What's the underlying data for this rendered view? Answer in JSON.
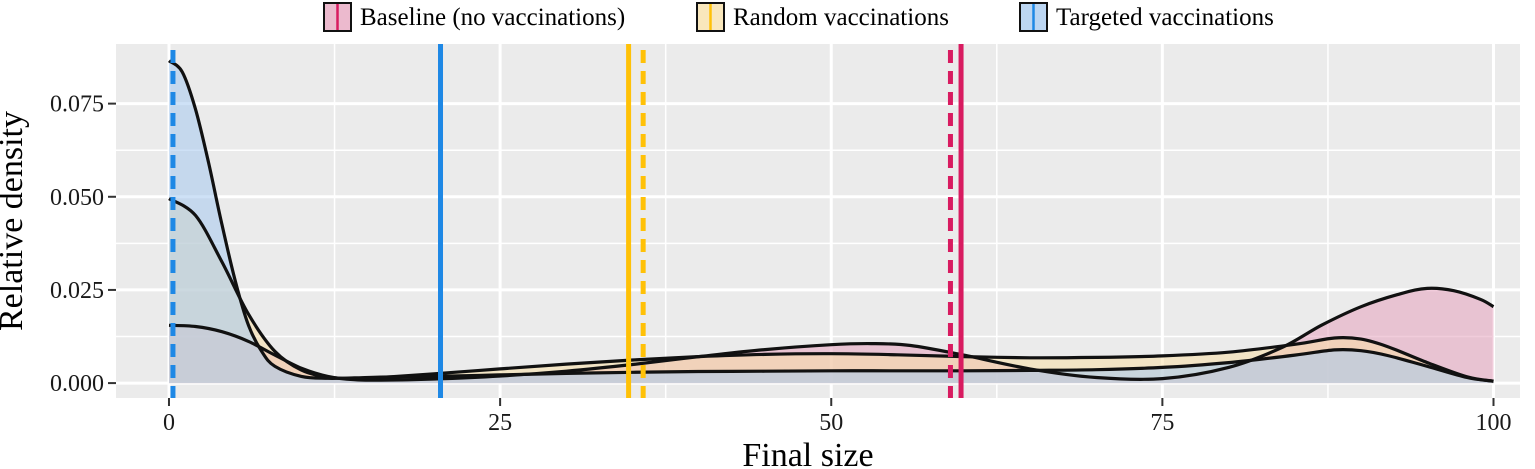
{
  "chart_data": {
    "type": "area",
    "xlabel": "Final size",
    "ylabel": "Relative density",
    "xlim": [
      -4,
      102
    ],
    "ylim": [
      -0.004,
      0.091
    ],
    "x_ticks": [
      0,
      25,
      50,
      75,
      100
    ],
    "x_tick_labels": [
      "0",
      "25",
      "50",
      "75",
      "100"
    ],
    "y_ticks": [
      0,
      0.025,
      0.05,
      0.075
    ],
    "y_tick_labels": [
      "0.000",
      "0.025",
      "0.050",
      "0.075"
    ],
    "grid": true,
    "legend_position": "top",
    "series": [
      {
        "name": "Baseline (no vaccinations)",
        "color": "#d81b60",
        "fill": "#e6a3bd",
        "x": [
          0,
          2,
          4,
          6,
          8,
          10,
          12,
          14,
          16,
          20,
          25,
          30,
          35,
          40,
          45,
          50,
          53,
          56,
          60,
          65,
          70,
          75,
          80,
          84,
          87,
          90,
          93,
          95,
          97,
          99,
          100
        ],
        "y": [
          0.0155,
          0.0152,
          0.0138,
          0.0112,
          0.0075,
          0.004,
          0.0018,
          0.0009,
          0.0008,
          0.0011,
          0.0019,
          0.0032,
          0.005,
          0.0071,
          0.009,
          0.0103,
          0.0106,
          0.0101,
          0.0075,
          0.0038,
          0.0015,
          0.0012,
          0.0042,
          0.0095,
          0.0155,
          0.0205,
          0.024,
          0.0254,
          0.0248,
          0.0225,
          0.0205
        ],
        "mean": 59.8,
        "median": 59.0
      },
      {
        "name": "Random vaccinations",
        "color": "#ffc107",
        "fill": "#f7dfa5",
        "x": [
          0,
          2,
          4,
          6,
          8,
          10,
          12,
          14,
          16,
          20,
          25,
          30,
          35,
          40,
          45,
          50,
          55,
          60,
          65,
          70,
          75,
          80,
          85,
          88,
          90,
          92,
          95,
          98,
          100
        ],
        "y": [
          0.0495,
          0.045,
          0.0325,
          0.0185,
          0.0085,
          0.0035,
          0.0016,
          0.0012,
          0.0015,
          0.0025,
          0.0038,
          0.0051,
          0.0062,
          0.0071,
          0.0077,
          0.0079,
          0.0076,
          0.0071,
          0.0068,
          0.0069,
          0.0073,
          0.0083,
          0.0104,
          0.0121,
          0.0118,
          0.0098,
          0.0055,
          0.0017,
          0.0005
        ],
        "mean": 34.7,
        "median": 35.8
      },
      {
        "name": "Targeted vaccinations",
        "color": "#1e88e5",
        "fill": "#a5c8ee",
        "x": [
          0,
          1,
          2,
          3,
          4,
          5,
          6,
          7,
          8,
          10,
          12,
          14,
          16,
          20,
          25,
          30,
          35,
          40,
          45,
          50,
          55,
          60,
          65,
          70,
          75,
          80,
          85,
          88,
          90,
          92,
          95,
          98,
          100
        ],
        "y": [
          0.0865,
          0.0835,
          0.0735,
          0.059,
          0.0425,
          0.0275,
          0.0155,
          0.0085,
          0.0045,
          0.0018,
          0.0013,
          0.0014,
          0.0016,
          0.0018,
          0.0022,
          0.0026,
          0.0029,
          0.0031,
          0.0032,
          0.0033,
          0.0033,
          0.0033,
          0.0034,
          0.0036,
          0.0042,
          0.0055,
          0.0075,
          0.0089,
          0.0087,
          0.0074,
          0.0045,
          0.0015,
          0.0005
        ],
        "mean": 20.5,
        "median": 0.3
      }
    ]
  }
}
